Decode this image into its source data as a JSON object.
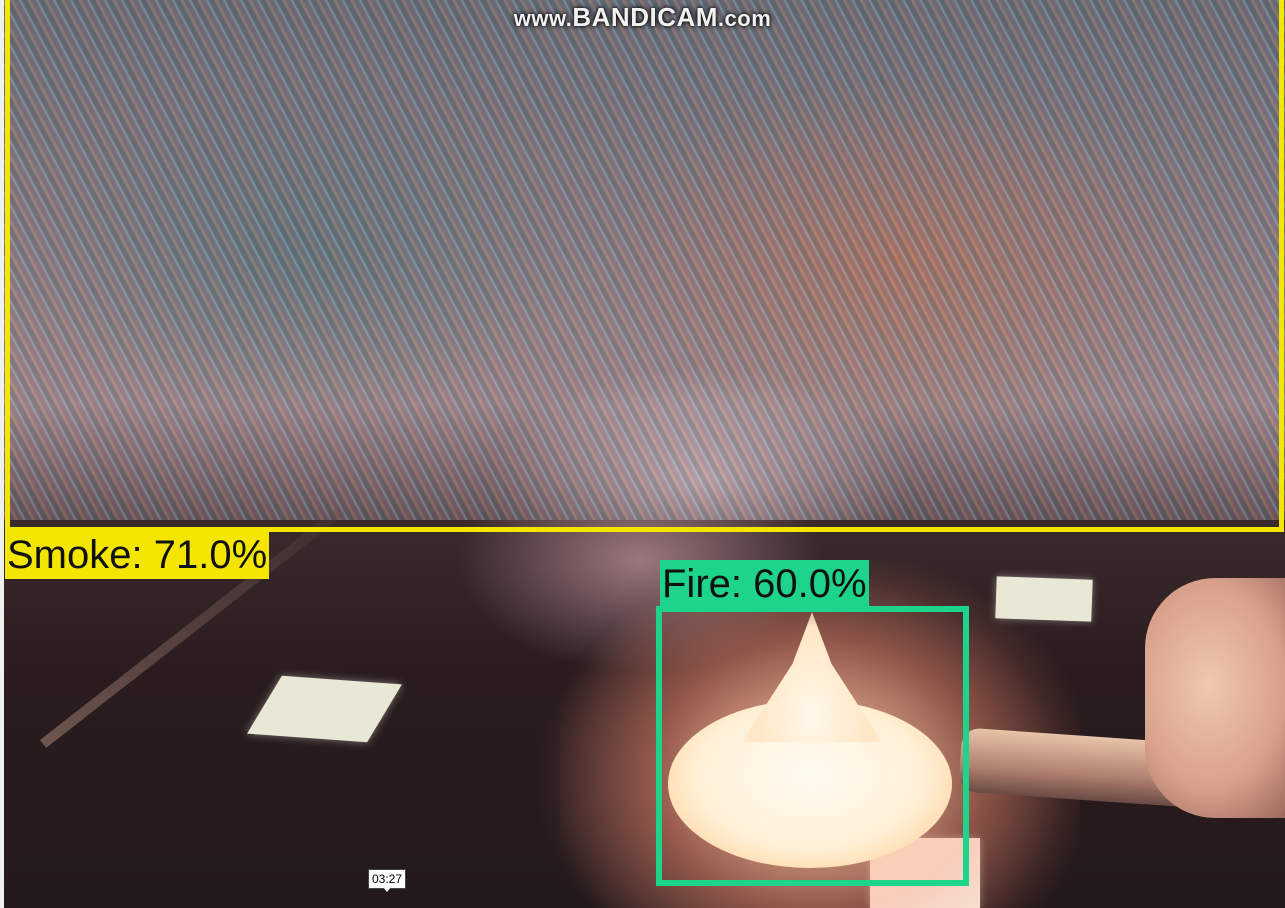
{
  "watermark": {
    "prefix": "www.",
    "brand": "BANDICAM",
    "suffix": ".com"
  },
  "detections": [
    {
      "label": "Smoke: 71.0%",
      "class": "Smoke",
      "confidence": 71.0,
      "color": "#f5e600"
    },
    {
      "label": "Fire: 60.0%",
      "class": "Fire",
      "confidence": 60.0,
      "color": "#1ed38a"
    }
  ],
  "player": {
    "timestamp": "03:27"
  }
}
